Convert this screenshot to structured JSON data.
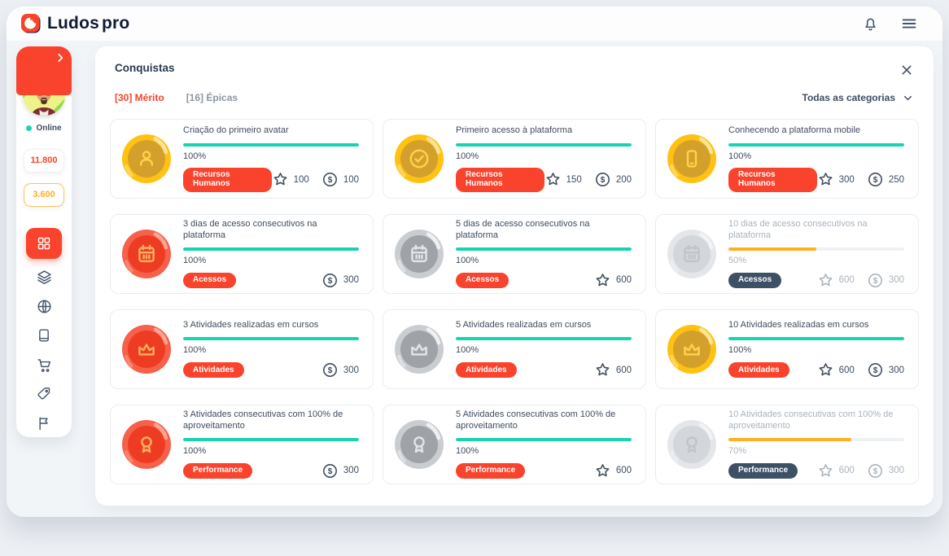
{
  "brand": {
    "name_bold": "Ludos",
    "name_light": "pro"
  },
  "topbar": {
    "icons": [
      "notifications-bell",
      "hamburger-menu"
    ]
  },
  "sidebar": {
    "online_label": "Online",
    "points": "11.800",
    "coins": "3.600",
    "menu_icons": [
      "dashboard-grid",
      "layers",
      "globe",
      "book",
      "shopping-cart",
      "tag",
      "flag"
    ],
    "active_item": "dashboard-grid"
  },
  "panel": {
    "title": "Conquistas",
    "tabs": [
      {
        "label": "[30] Mérito",
        "active": true
      },
      {
        "label": "[16] Épicas",
        "active": false
      }
    ],
    "filter_label": "Todas as categorias"
  },
  "colors": {
    "accent_red": "#f9432c",
    "teal": "#17d4b0",
    "yellow": "#fdb022",
    "dark_badge": "#3d5166"
  },
  "cards": [
    {
      "icon": "user",
      "medal": "gold",
      "title": "Criação do primeiro avatar",
      "progress": 100,
      "progress_label": "100%",
      "category": "Recursos Humanos",
      "category_style": "red",
      "star": "100",
      "coins": "100",
      "locked": false
    },
    {
      "icon": "check",
      "medal": "gold",
      "title": "Primeiro acesso à plataforma",
      "progress": 100,
      "progress_label": "100%",
      "category": "Recursos Humanos",
      "category_style": "red",
      "star": "150",
      "coins": "200",
      "locked": false
    },
    {
      "icon": "smartphone",
      "medal": "gold",
      "title": "Conhecendo a plataforma mobile",
      "progress": 100,
      "progress_label": "100%",
      "category": "Recursos Humanos",
      "category_style": "red",
      "star": "300",
      "coins": "250",
      "locked": false
    },
    {
      "icon": "calendar",
      "medal": "red",
      "title": "3 dias de acesso consecutivos na plataforma",
      "progress": 100,
      "progress_label": "100%",
      "category": "Acessos",
      "category_style": "red",
      "star": null,
      "coins": "300",
      "locked": false
    },
    {
      "icon": "calendar",
      "medal": "silver",
      "title": "5 dias de acesso consecutivos na plataforma",
      "progress": 100,
      "progress_label": "100%",
      "category": "Acessos",
      "category_style": "red",
      "star": "600",
      "coins": null,
      "locked": false
    },
    {
      "icon": "calendar",
      "medal": "locked",
      "title": "10 dias de acesso consecutivos na plataforma",
      "progress": 50,
      "progress_label": "50%",
      "category": "Acessos",
      "category_style": "dark",
      "star": "600",
      "coins": "300",
      "locked": true
    },
    {
      "icon": "crown",
      "medal": "red",
      "title": "3 Atividades realizadas em cursos",
      "progress": 100,
      "progress_label": "100%",
      "category": "Atividades",
      "category_style": "red",
      "star": null,
      "coins": "300",
      "locked": false
    },
    {
      "icon": "crown",
      "medal": "silver",
      "title": "5 Atividades realizadas em cursos",
      "progress": 100,
      "progress_label": "100%",
      "category": "Atividades",
      "category_style": "red",
      "star": "600",
      "coins": null,
      "locked": false
    },
    {
      "icon": "crown",
      "medal": "gold",
      "title": "10 Atividades realizadas em cursos",
      "progress": 100,
      "progress_label": "100%",
      "category": "Atividades",
      "category_style": "red",
      "star": "600",
      "coins": "300",
      "locked": false
    },
    {
      "icon": "award",
      "medal": "red",
      "title": "3 Atividades consecutivas com 100% de aproveitamento",
      "progress": 100,
      "progress_label": "100%",
      "category": "Performance",
      "category_style": "red",
      "star": null,
      "coins": "300",
      "locked": false
    },
    {
      "icon": "award",
      "medal": "silver",
      "title": "5 Atividades consecutivas com 100% de aproveitamento",
      "progress": 100,
      "progress_label": "100%",
      "category": "Performance",
      "category_style": "red",
      "star": "600",
      "coins": null,
      "locked": false
    },
    {
      "icon": "award",
      "medal": "locked",
      "title": "10 Atividades consecutivas com 100% de aproveitamento",
      "progress": 70,
      "progress_label": "70%",
      "category": "Performance",
      "category_style": "dark",
      "star": "600",
      "coins": "300",
      "locked": true
    }
  ]
}
